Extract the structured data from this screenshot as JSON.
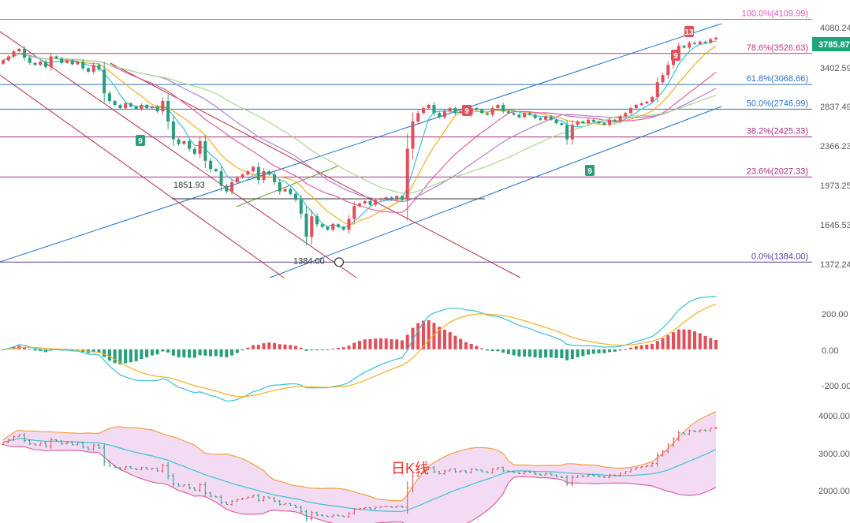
{
  "chart_data": [
    {
      "type": "candlestick",
      "panel": "price",
      "last_price": "3785.87",
      "y_tick_labels": [
        "4080.24",
        "3402.59",
        "2837.49",
        "2366.23",
        "1973.25",
        "1645.53",
        "1372.24"
      ],
      "ylim": [
        1300,
        4250
      ],
      "fibonacci": [
        {
          "label": "100.0%(4109.99)",
          "price": 4109.99,
          "color": "#e055c0"
        },
        {
          "label": "78.6%(3526.63)",
          "price": 3526.63,
          "color": "#c0308c"
        },
        {
          "label": "61.8%(3068.66)",
          "price": 3068.66,
          "color": "#3070c0"
        },
        {
          "label": "50.0%(2746.99)",
          "price": 2746.99,
          "color": "#3070c0"
        },
        {
          "label": "38.2%(2425.33)",
          "price": 2425.33,
          "color": "#a0307c"
        },
        {
          "label": "23.6%(2027.33)",
          "price": 2027.33,
          "color": "#a0307c"
        },
        {
          "label": "0.0%(1384.00)",
          "price": 1384.0,
          "color": "#6040a0"
        }
      ],
      "annotations": [
        {
          "text": "1851.93",
          "price": 1851.93
        },
        {
          "text": "1384.00",
          "price": 1384.0
        }
      ],
      "td_markers": [
        {
          "text": "9",
          "color": "#2a9d7c",
          "position": "below"
        },
        {
          "text": "9",
          "color": "#e0505a",
          "position": "above"
        },
        {
          "text": "9",
          "color": "#2a9d7c",
          "position": "below"
        },
        {
          "text": "9",
          "color": "#e0505a",
          "position": "above"
        },
        {
          "text": "13",
          "color": "#e0505a",
          "position": "above"
        }
      ],
      "closes": [
        3420,
        3480,
        3560,
        3600,
        3460,
        3380,
        3350,
        3400,
        3320,
        3480,
        3450,
        3380,
        3420,
        3360,
        3400,
        3300,
        3250,
        3350,
        3280,
        2950,
        2850,
        2800,
        2760,
        2820,
        2780,
        2750,
        2800,
        2760,
        2780,
        2720,
        2850,
        2600,
        2400,
        2350,
        2380,
        2300,
        2250,
        2380,
        2180,
        2100,
        2080,
        1950,
        1900,
        1980,
        2020,
        2050,
        2080,
        2120,
        2000,
        2080,
        2050,
        1980,
        1900,
        1920,
        1880,
        1830,
        1720,
        1550,
        1700,
        1640,
        1620,
        1600,
        1640,
        1620,
        1600,
        1680,
        1780,
        1800,
        1820,
        1790,
        1830,
        1840,
        1850,
        1830,
        1860,
        1830,
        2300,
        2600,
        2700,
        2760,
        2800,
        2700,
        2650,
        2720,
        2760,
        2700,
        2720,
        2680,
        2760,
        2740,
        2700,
        2680,
        2760,
        2800,
        2720,
        2700,
        2680,
        2650,
        2700,
        2680,
        2640,
        2620,
        2660,
        2620,
        2580,
        2560,
        2400,
        2560,
        2600,
        2580,
        2620,
        2600,
        2580,
        2560,
        2620,
        2600,
        2660,
        2700,
        2760,
        2800,
        2820,
        2840,
        2900,
        3100,
        3200,
        3350,
        3500,
        3650,
        3620,
        3700,
        3680,
        3720,
        3700,
        3760,
        3785
      ]
    },
    {
      "type": "macd",
      "panel": "indicator",
      "y_tick_labels": [
        "200.00",
        "0.00",
        "-200.00"
      ],
      "ylim": [
        -240,
        320
      ]
    },
    {
      "type": "bollinger",
      "panel": "lower",
      "y_tick_labels": [
        "4000.00",
        "3000.00",
        "2000.00"
      ],
      "ylim": [
        1600,
        4300
      ],
      "watermark": "日K线"
    }
  ],
  "colors": {
    "up": "#e0505a",
    "down": "#2a9d7c",
    "ma_cyan": "#3cc0d0",
    "ma_orange": "#f0b020",
    "ma_pink": "#e060a0",
    "ma_violet": "#b080d0",
    "ma_green": "#a8d890",
    "channel_blue": "#2070c0",
    "channel_red": "#b03040",
    "price_tag_bg": "#1ea37a",
    "boll_fill": "#f3dcf3",
    "boll_upper": "#f0a040",
    "boll_lower": "#e060a0",
    "boll_mid": "#3cc0d0"
  }
}
